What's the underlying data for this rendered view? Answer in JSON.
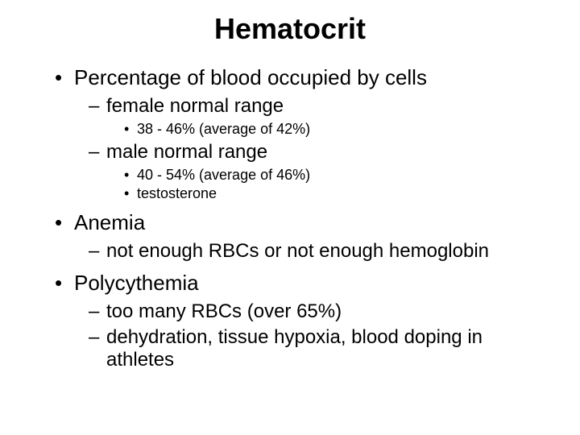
{
  "title": "Hematocrit",
  "items": [
    {
      "text": "Percentage of blood occupied by cells",
      "sub": [
        {
          "text": "female normal range",
          "sub": [
            {
              "text": "38 - 46% (average of 42%)"
            }
          ]
        },
        {
          "text": "male normal range",
          "sub": [
            {
              "text": "40 - 54% (average of 46%)"
            },
            {
              "text": "testosterone"
            }
          ]
        }
      ]
    },
    {
      "text": "Anemia",
      "sub": [
        {
          "text": "not enough RBCs or not enough hemoglobin"
        }
      ]
    },
    {
      "text": "Polycythemia",
      "sub": [
        {
          "text": "too many RBCs (over 65%)"
        },
        {
          "text": "dehydration, tissue hypoxia, blood doping in athletes"
        }
      ]
    }
  ],
  "bullets": {
    "l1": "•",
    "l2": "–",
    "l3": "•"
  }
}
